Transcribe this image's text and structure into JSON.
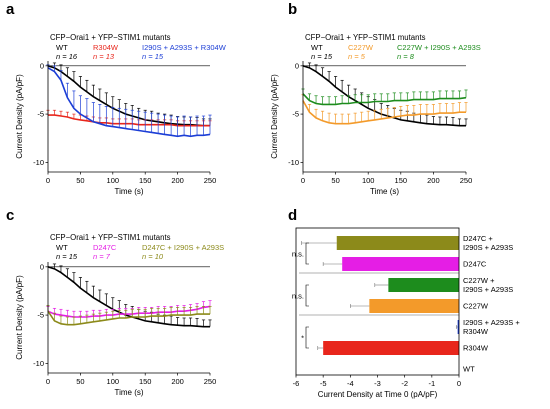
{
  "chart_data": [
    {
      "panel": "a",
      "type": "line",
      "title": "CFP−Orai1 + YFP−STIM1 mutants",
      "xlabel": "Time (s)",
      "ylabel": "Current Density (pA/pF)",
      "xlim": [
        0,
        250
      ],
      "ylim": [
        -11,
        0.5
      ],
      "xticks": [
        0,
        50,
        100,
        150,
        200,
        250
      ],
      "yticks": [
        0,
        -5,
        -10
      ],
      "series": [
        {
          "name": "WT",
          "n": "n = 16",
          "color": "#000000",
          "x": [
            0,
            10,
            20,
            30,
            40,
            50,
            60,
            70,
            80,
            90,
            100,
            110,
            120,
            130,
            140,
            150,
            160,
            170,
            180,
            190,
            200,
            210,
            220,
            230,
            240,
            250
          ],
          "y": [
            0,
            -0.2,
            -0.6,
            -1.1,
            -1.6,
            -2.2,
            -2.7,
            -3.2,
            -3.6,
            -4.0,
            -4.4,
            -4.7,
            -5.0,
            -5.2,
            -5.4,
            -5.6,
            -5.7,
            -5.8,
            -5.9,
            -6.0,
            -6.05,
            -6.1,
            -6.1,
            -6.15,
            -6.2,
            -6.2
          ],
          "err": [
            0,
            0.5,
            0.7,
            0.9,
            1.0,
            1.1,
            1.2,
            1.2,
            1.2,
            1.2,
            1.2,
            1.2,
            1.1,
            1.1,
            1.0,
            1.0,
            1.0,
            0.9,
            0.9,
            0.9,
            0.8,
            0.8,
            0.8,
            0.8,
            0.7,
            0.7
          ]
        },
        {
          "name": "R304W",
          "n": "n = 13",
          "color": "#e8261c",
          "x": [
            0,
            10,
            20,
            30,
            40,
            50,
            60,
            70,
            80,
            90,
            100,
            110,
            120,
            130,
            140,
            150,
            160,
            170,
            180,
            190,
            200,
            210,
            220,
            230,
            240,
            250
          ],
          "y": [
            -5.1,
            -5.1,
            -5.2,
            -5.3,
            -5.5,
            -5.6,
            -5.7,
            -5.8,
            -5.9,
            -5.9,
            -6.0,
            -6.0,
            -6.0,
            -6.0,
            -6.1,
            -6.1,
            -6.1,
            -6.1,
            -6.1,
            -6.1,
            -6.2,
            -6.2,
            -6.2,
            -6.2,
            -6.2,
            -6.2
          ],
          "err": [
            0.5,
            0.5,
            0.5,
            0.5,
            0.5,
            0.5,
            0.5,
            0.5,
            0.5,
            0.5,
            0.5,
            0.5,
            0.5,
            0.5,
            0.5,
            0.5,
            0.5,
            0.5,
            0.5,
            0.5,
            0.5,
            0.5,
            0.5,
            0.5,
            0.5,
            0.5
          ]
        },
        {
          "name": "I290S + A293S + R304W",
          "n": "n = 15",
          "color": "#1c3ed6",
          "x": [
            0,
            10,
            20,
            30,
            40,
            50,
            60,
            70,
            80,
            90,
            100,
            110,
            120,
            130,
            140,
            150,
            160,
            170,
            180,
            190,
            200,
            210,
            220,
            230,
            240,
            250
          ],
          "y": [
            -0.2,
            -0.6,
            -1.5,
            -3.3,
            -4.4,
            -5.0,
            -5.4,
            -5.8,
            -6.0,
            -6.2,
            -6.3,
            -6.4,
            -6.5,
            -6.6,
            -6.7,
            -6.8,
            -6.9,
            -7.0,
            -7.1,
            -7.2,
            -7.3,
            -7.2,
            -7.3,
            -7.2,
            -7.2,
            -7.1
          ],
          "err": [
            0.3,
            0.6,
            1.0,
            1.5,
            1.8,
            1.9,
            2.0,
            2.0,
            2.0,
            2.0,
            2.0,
            2.0,
            2.0,
            2.0,
            2.0,
            2.0,
            2.0,
            2.0,
            2.0,
            2.0,
            2.0,
            2.0,
            2.0,
            2.0,
            2.0,
            2.0
          ]
        }
      ]
    },
    {
      "panel": "b",
      "type": "line",
      "title": "CFP−Orai1 + YFP−STIM1 mutants",
      "xlabel": "Time (s)",
      "ylabel": "Current Density (pA/pF)",
      "xlim": [
        0,
        250
      ],
      "ylim": [
        -11,
        0.5
      ],
      "xticks": [
        0,
        50,
        100,
        150,
        200,
        250
      ],
      "yticks": [
        0,
        -5,
        -10
      ],
      "series": [
        {
          "name": "WT",
          "n": "n = 15",
          "color": "#000000",
          "x": [
            0,
            10,
            20,
            30,
            40,
            50,
            60,
            70,
            80,
            90,
            100,
            110,
            120,
            130,
            140,
            150,
            160,
            170,
            180,
            190,
            200,
            210,
            220,
            230,
            240,
            250
          ],
          "y": [
            0,
            -0.2,
            -0.6,
            -1.1,
            -1.6,
            -2.2,
            -2.7,
            -3.2,
            -3.6,
            -4.0,
            -4.4,
            -4.7,
            -5.0,
            -5.2,
            -5.4,
            -5.6,
            -5.7,
            -5.8,
            -5.9,
            -6.0,
            -6.05,
            -6.1,
            -6.1,
            -6.15,
            -6.2,
            -6.2
          ],
          "err": [
            0,
            0.5,
            0.7,
            0.9,
            1.0,
            1.1,
            1.2,
            1.2,
            1.2,
            1.2,
            1.2,
            1.2,
            1.1,
            1.1,
            1.0,
            1.0,
            1.0,
            0.9,
            0.9,
            0.9,
            0.8,
            0.8,
            0.8,
            0.8,
            0.7,
            0.7
          ]
        },
        {
          "name": "C227W",
          "n": "n = 5",
          "color": "#f39a2a",
          "x": [
            0,
            10,
            20,
            30,
            40,
            50,
            60,
            70,
            80,
            90,
            100,
            110,
            120,
            130,
            140,
            150,
            160,
            170,
            180,
            190,
            200,
            210,
            220,
            230,
            240,
            250
          ],
          "y": [
            -3.6,
            -4.8,
            -5.4,
            -5.7,
            -5.9,
            -6.0,
            -6.0,
            -6.0,
            -5.9,
            -5.8,
            -5.7,
            -5.6,
            -5.5,
            -5.4,
            -5.3,
            -5.2,
            -5.1,
            -5.1,
            -5.0,
            -5.0,
            -5.0,
            -4.9,
            -4.9,
            -4.9,
            -4.8,
            -4.8
          ],
          "err": [
            0.6,
            0.8,
            0.9,
            1.0,
            1.0,
            1.0,
            1.0,
            1.0,
            1.0,
            1.0,
            1.0,
            1.0,
            1.0,
            1.0,
            1.0,
            1.0,
            1.0,
            1.0,
            1.0,
            1.0,
            1.0,
            1.0,
            1.0,
            1.0,
            1.0,
            1.0
          ]
        },
        {
          "name": "C227W + I290S + A293S",
          "n": "n = 8",
          "color": "#1d8c1d",
          "x": [
            0,
            10,
            20,
            30,
            40,
            50,
            60,
            70,
            80,
            90,
            100,
            110,
            120,
            130,
            140,
            150,
            160,
            170,
            180,
            190,
            200,
            210,
            220,
            230,
            240,
            250
          ],
          "y": [
            -2.9,
            -3.6,
            -3.9,
            -4.0,
            -4.0,
            -4.0,
            -3.9,
            -3.9,
            -3.8,
            -3.8,
            -3.8,
            -3.7,
            -3.7,
            -3.7,
            -3.6,
            -3.6,
            -3.6,
            -3.5,
            -3.5,
            -3.5,
            -3.5,
            -3.4,
            -3.4,
            -3.4,
            -3.4,
            -3.3
          ],
          "err": [
            0.5,
            0.7,
            0.8,
            0.8,
            0.8,
            0.8,
            0.8,
            0.8,
            0.8,
            0.8,
            0.8,
            0.8,
            0.8,
            0.8,
            0.8,
            0.8,
            0.8,
            0.8,
            0.8,
            0.8,
            0.8,
            0.8,
            0.8,
            0.8,
            0.8,
            0.8
          ]
        }
      ]
    },
    {
      "panel": "c",
      "type": "line",
      "title": "CFP−Orai1 + YFP−STIM1 mutants",
      "xlabel": "Time (s)",
      "ylabel": "Current Density (pA/pF)",
      "xlim": [
        0,
        250
      ],
      "ylim": [
        -11,
        0.5
      ],
      "xticks": [
        0,
        50,
        100,
        150,
        200,
        250
      ],
      "yticks": [
        0,
        -5,
        -10
      ],
      "series": [
        {
          "name": "WT",
          "n": "n = 15",
          "color": "#000000",
          "x": [
            0,
            10,
            20,
            30,
            40,
            50,
            60,
            70,
            80,
            90,
            100,
            110,
            120,
            130,
            140,
            150,
            160,
            170,
            180,
            190,
            200,
            210,
            220,
            230,
            240,
            250
          ],
          "y": [
            0,
            -0.2,
            -0.6,
            -1.1,
            -1.6,
            -2.2,
            -2.7,
            -3.2,
            -3.6,
            -4.0,
            -4.4,
            -4.7,
            -5.0,
            -5.2,
            -5.4,
            -5.6,
            -5.7,
            -5.8,
            -5.9,
            -6.0,
            -6.05,
            -6.1,
            -6.1,
            -6.15,
            -6.2,
            -6.2
          ],
          "err": [
            0,
            0.5,
            0.7,
            0.9,
            1.0,
            1.1,
            1.2,
            1.2,
            1.2,
            1.2,
            1.2,
            1.2,
            1.1,
            1.1,
            1.0,
            1.0,
            1.0,
            0.9,
            0.9,
            0.9,
            0.8,
            0.8,
            0.8,
            0.8,
            0.7,
            0.7
          ]
        },
        {
          "name": "D247C",
          "n": "n = 7",
          "color": "#e51ee5",
          "x": [
            0,
            10,
            20,
            30,
            40,
            50,
            60,
            70,
            80,
            90,
            100,
            110,
            120,
            130,
            140,
            150,
            160,
            170,
            180,
            190,
            200,
            210,
            220,
            230,
            240,
            250
          ],
          "y": [
            -4.6,
            -4.9,
            -5.0,
            -5.1,
            -5.2,
            -5.2,
            -5.2,
            -5.1,
            -5.1,
            -5.0,
            -5.0,
            -4.9,
            -4.9,
            -4.9,
            -4.8,
            -4.8,
            -4.8,
            -4.7,
            -4.7,
            -4.7,
            -4.6,
            -4.6,
            -4.5,
            -4.4,
            -4.2,
            -4.1
          ],
          "err": [
            0.5,
            0.6,
            0.6,
            0.6,
            0.6,
            0.6,
            0.6,
            0.6,
            0.6,
            0.6,
            0.6,
            0.6,
            0.6,
            0.6,
            0.6,
            0.6,
            0.6,
            0.6,
            0.6,
            0.6,
            0.6,
            0.6,
            0.6,
            0.6,
            0.6,
            0.6
          ]
        },
        {
          "name": "D247C + I290S + A293S",
          "n": "n = 10",
          "color": "#8c8a1a",
          "x": [
            0,
            10,
            20,
            30,
            40,
            50,
            60,
            70,
            80,
            90,
            100,
            110,
            120,
            130,
            140,
            150,
            160,
            170,
            180,
            190,
            200,
            210,
            220,
            230,
            240,
            250
          ],
          "y": [
            -4.6,
            -5.6,
            -5.9,
            -6.0,
            -6.0,
            -5.9,
            -5.8,
            -5.7,
            -5.6,
            -5.5,
            -5.4,
            -5.3,
            -5.3,
            -5.2,
            -5.2,
            -5.2,
            -5.1,
            -5.1,
            -5.1,
            -5.0,
            -5.0,
            -5.0,
            -5.0,
            -4.9,
            -4.9,
            -4.9
          ],
          "err": [
            0.6,
            0.8,
            0.8,
            0.8,
            0.8,
            0.8,
            0.8,
            0.8,
            0.8,
            0.8,
            0.8,
            0.8,
            0.8,
            0.8,
            0.8,
            0.8,
            0.8,
            0.8,
            0.8,
            0.8,
            0.8,
            0.8,
            0.8,
            0.8,
            0.8,
            0.8
          ]
        }
      ]
    },
    {
      "panel": "d",
      "type": "bar",
      "orientation": "horizontal",
      "xlabel": "Current Density at Time 0 (pA/pF)",
      "xlim": [
        -6,
        0
      ],
      "xticks": [
        -6,
        -5,
        -4,
        -3,
        -2,
        -1,
        0
      ],
      "bars": [
        {
          "label": [
            "D247C +",
            "I290S + A293S"
          ],
          "value": -4.5,
          "err": 1.3,
          "color": "#8c8a1a"
        },
        {
          "label": [
            "D247C"
          ],
          "value": -4.3,
          "err": 0.7,
          "color": "#e51ee5"
        },
        {
          "label": [
            "C227W +",
            "I290S + A293S"
          ],
          "value": -2.6,
          "err": 0.5,
          "color": "#1d8c1d"
        },
        {
          "label": [
            "C227W"
          ],
          "value": -3.3,
          "err": 0.7,
          "color": "#f39a2a"
        },
        {
          "label": [
            "I290S + A293S +",
            "R304W"
          ],
          "value": -0.05,
          "err": 0.05,
          "color": "#1c3ed6"
        },
        {
          "label": [
            "R304W"
          ],
          "value": -5.0,
          "err": 0.2,
          "color": "#e8261c"
        },
        {
          "label": [
            "WT"
          ],
          "value": 0,
          "err": 0,
          "color": "#000000"
        }
      ],
      "significance": [
        {
          "bars": [
            0,
            1
          ],
          "text": "n.s."
        },
        {
          "bars": [
            2,
            3
          ],
          "text": "n.s."
        },
        {
          "bars": [
            4,
            5
          ],
          "text": "*"
        }
      ]
    }
  ]
}
